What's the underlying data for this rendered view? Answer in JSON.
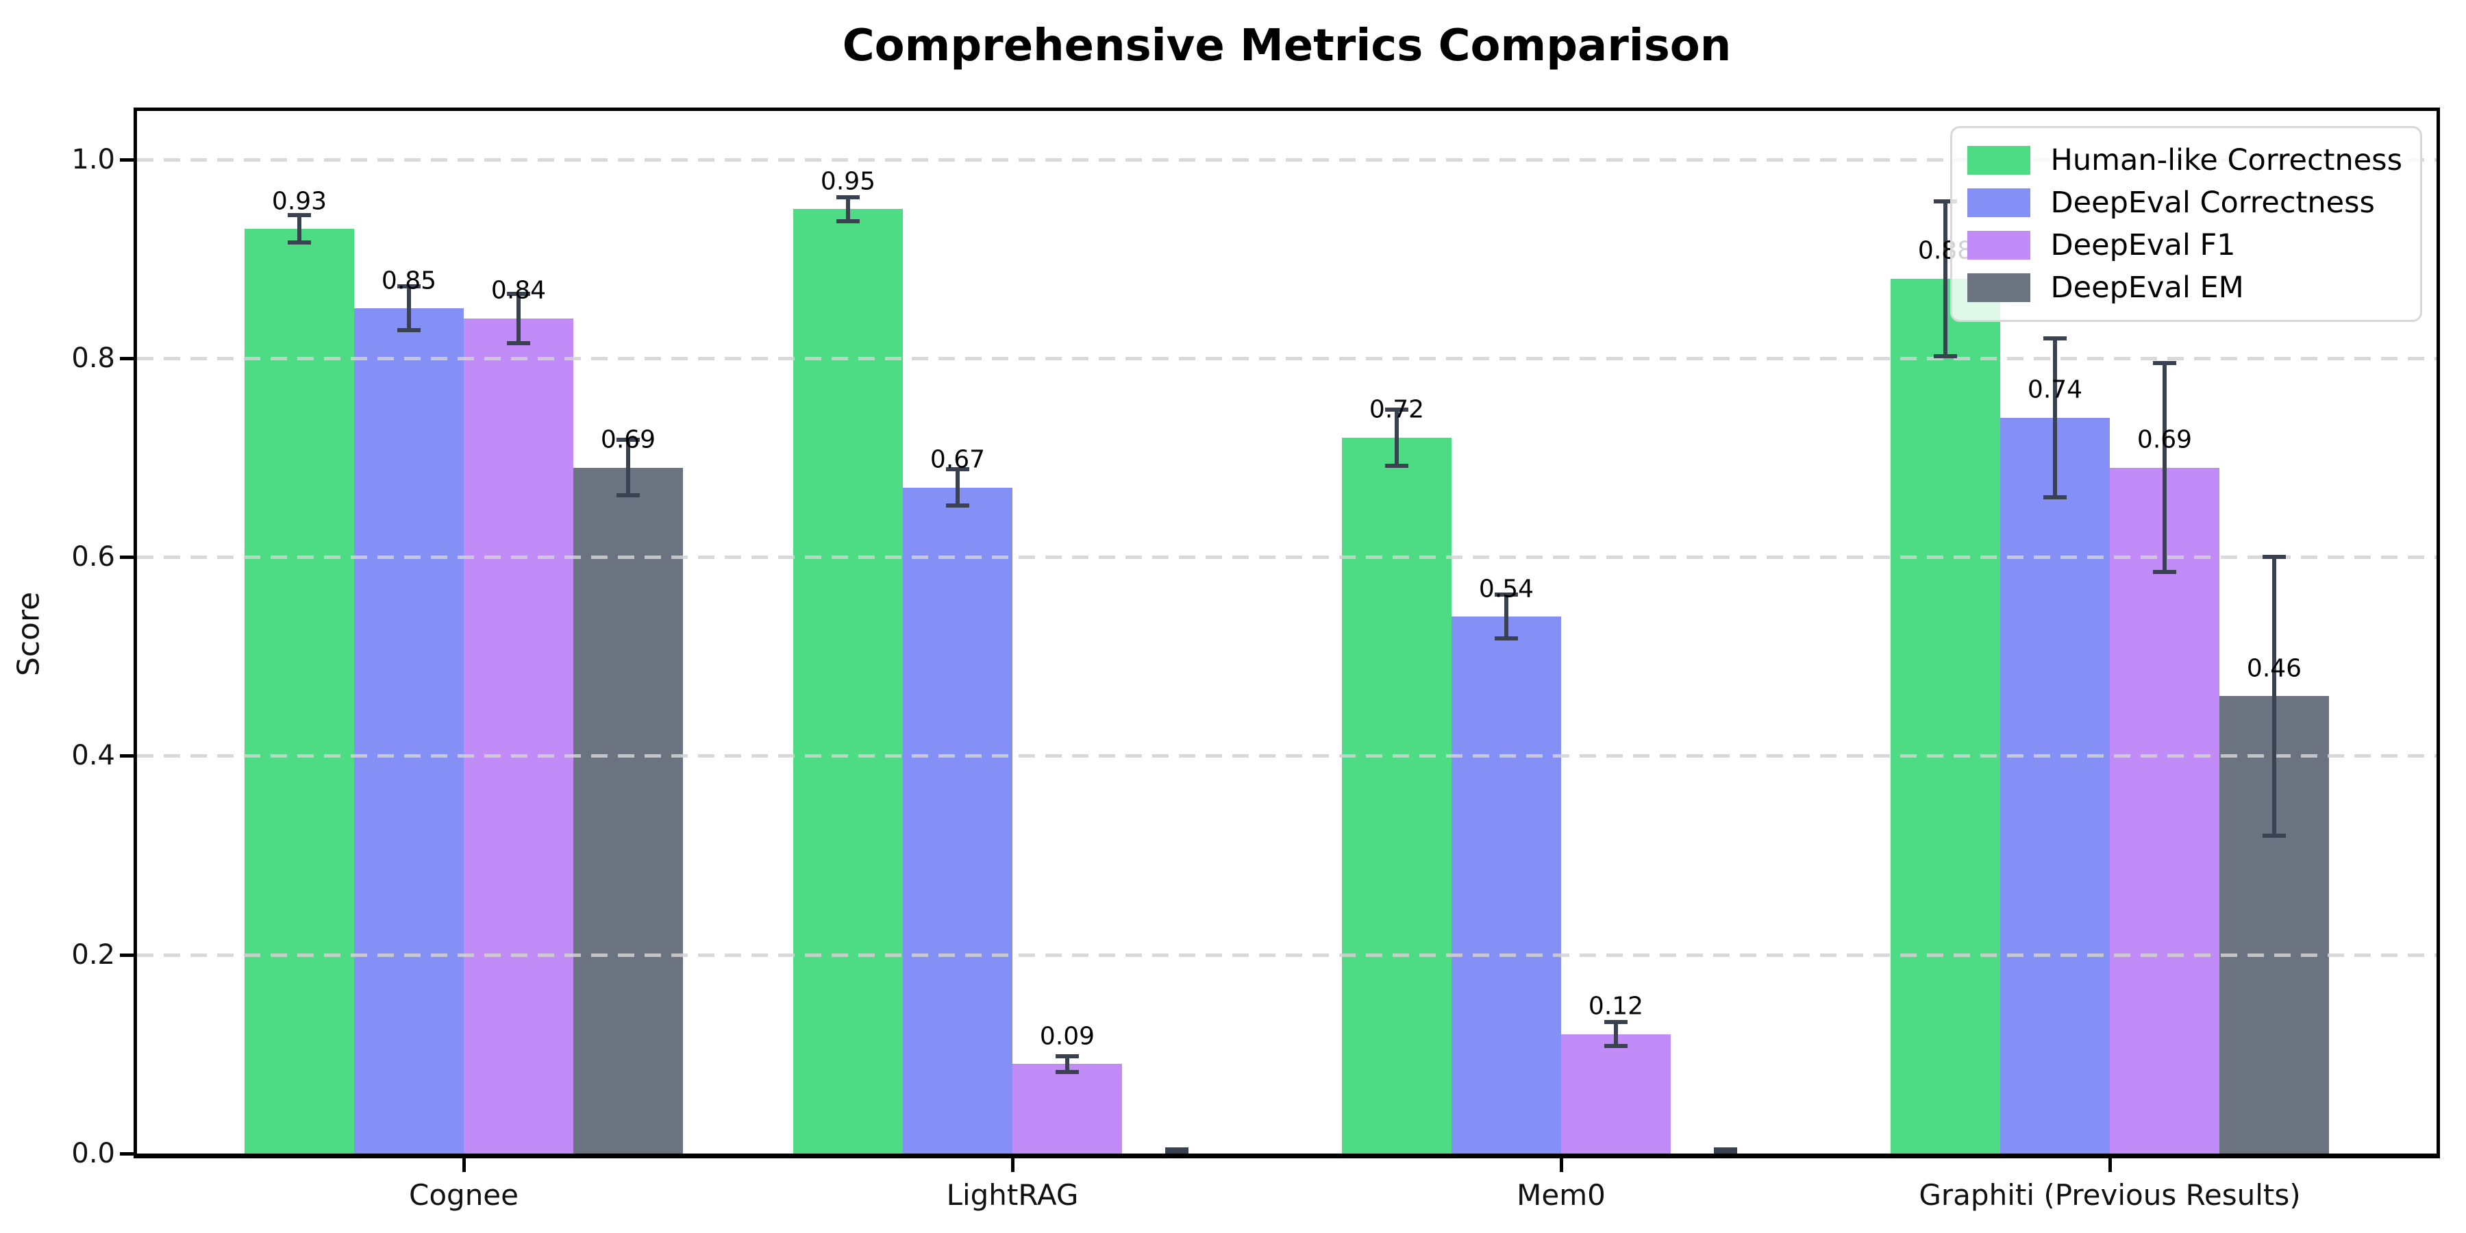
{
  "chart_data": {
    "type": "bar",
    "title": "Comprehensive Metrics Comparison",
    "ylabel": "Score",
    "xlabel": "",
    "categories": [
      "Cognee",
      "LightRAG",
      "Mem0",
      "Graphiti (Previous Results)"
    ],
    "series": [
      {
        "name": "Human-like Correctness",
        "color": "#4ddc84",
        "values": [
          0.93,
          0.95,
          0.72,
          0.88
        ],
        "errors": [
          0.014,
          0.012,
          0.028,
          0.078
        ],
        "labels": [
          "0.93",
          "0.95",
          "0.72",
          "0.88"
        ]
      },
      {
        "name": "DeepEval Correctness",
        "color": "#8490f5",
        "values": [
          0.85,
          0.67,
          0.54,
          0.74
        ],
        "errors": [
          0.022,
          0.018,
          0.022,
          0.08
        ],
        "labels": [
          "0.85",
          "0.67",
          "0.54",
          "0.74"
        ]
      },
      {
        "name": "DeepEval F1",
        "color": "#c18cf7",
        "values": [
          0.84,
          0.09,
          0.12,
          0.69
        ],
        "errors": [
          0.025,
          0.008,
          0.012,
          0.105
        ],
        "labels": [
          "0.84",
          "0.09",
          "0.12",
          "0.69"
        ]
      },
      {
        "name": "DeepEval EM",
        "color": "#6b7280",
        "values": [
          0.69,
          0.0,
          0.0,
          0.46
        ],
        "errors": [
          0.028,
          0.004,
          0.004,
          0.14
        ],
        "labels": [
          "0.69",
          "",
          "",
          "0.46"
        ]
      }
    ],
    "yticks": [
      {
        "label": "0.0",
        "value": 0.0
      },
      {
        "label": "0.2",
        "value": 0.2
      },
      {
        "label": "0.4",
        "value": 0.4
      },
      {
        "label": "0.6",
        "value": 0.6
      },
      {
        "label": "0.8",
        "value": 0.8
      },
      {
        "label": "1.0",
        "value": 1.0
      }
    ],
    "ylim": [
      0,
      1.05
    ],
    "grid": "horizontal-dashed",
    "legend_position": "upper-right",
    "error_bar_color": "#3a4252",
    "grid_color": "#d9d9d9"
  }
}
